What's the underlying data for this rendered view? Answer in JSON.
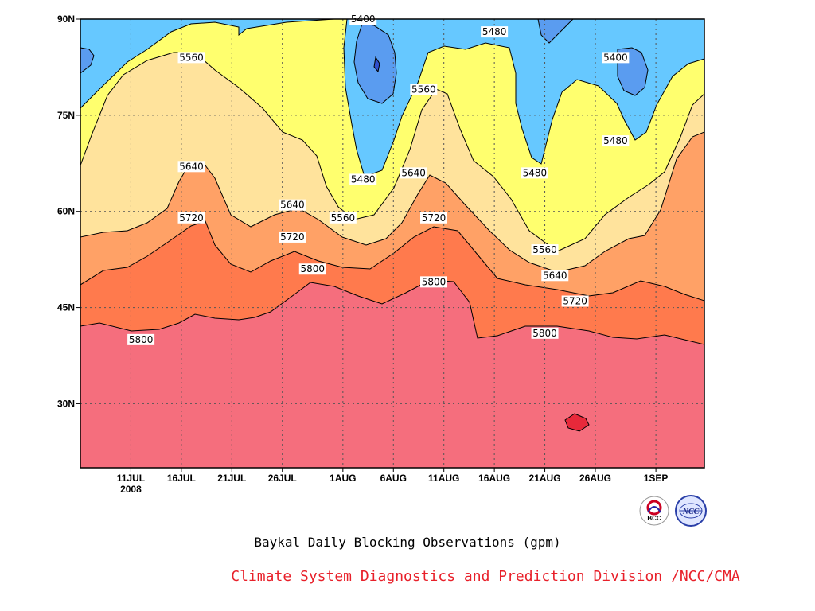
{
  "chart_data": {
    "type": "contour",
    "x": [
      "11JUL 2008",
      "16JUL",
      "21JUL",
      "26JUL",
      "1AUG",
      "6AUG",
      "11AUG",
      "16AUG",
      "21AUG",
      "26AUG",
      "1SEP"
    ],
    "x_ticks": [
      "11JUL",
      "16JUL",
      "21JUL",
      "26JUL",
      "1AUG",
      "6AUG",
      "11AUG",
      "16AUG",
      "21AUG",
      "26AUG",
      "1SEP"
    ],
    "x_year": "2008",
    "y_ticks": [
      "30N",
      "45N",
      "60N",
      "75N",
      "90N"
    ],
    "ylim_deg": [
      20,
      90
    ],
    "levels": [
      5400,
      5480,
      5560,
      5640,
      5720,
      5800
    ],
    "level_colors": {
      "lt5400": "#3d6fe0",
      "5400_5480": "#5a9cf0",
      "5480_5560": "#66c8ff",
      "5560_5640": "#ffff6e",
      "5640_5720": "#ffe39c",
      "5720_5800": "#ffa166",
      "5800_5880": "#ff7a4d",
      "gt5880": "#f56e7d",
      "hot_spot": "#e8293a",
      "deep_blue": "#3050d0"
    },
    "contour_labels": [
      {
        "text": "5400",
        "date": "3AUG",
        "lat": 90
      },
      {
        "text": "5480",
        "date": "16AUG",
        "lat": 88
      },
      {
        "text": "5400",
        "date": "28AUG",
        "lat": 84
      },
      {
        "text": "5560",
        "date": "17JUL",
        "lat": 84
      },
      {
        "text": "5560",
        "date": "9AUG",
        "lat": 79
      },
      {
        "text": "5480",
        "date": "28AUG",
        "lat": 71
      },
      {
        "text": "5480",
        "date": "3AUG",
        "lat": 65
      },
      {
        "text": "5480",
        "date": "20AUG",
        "lat": 66
      },
      {
        "text": "5640",
        "date": "17JUL",
        "lat": 67
      },
      {
        "text": "5640",
        "date": "8AUG",
        "lat": 66
      },
      {
        "text": "5640",
        "date": "27JUL",
        "lat": 61
      },
      {
        "text": "5720",
        "date": "17JUL",
        "lat": 59
      },
      {
        "text": "5560",
        "date": "1AUG",
        "lat": 59
      },
      {
        "text": "5720",
        "date": "10AUG",
        "lat": 59
      },
      {
        "text": "5720",
        "date": "27JUL",
        "lat": 56
      },
      {
        "text": "5560",
        "date": "21AUG",
        "lat": 54
      },
      {
        "text": "5800",
        "date": "29JUL",
        "lat": 51
      },
      {
        "text": "5640",
        "date": "22AUG",
        "lat": 50
      },
      {
        "text": "5800",
        "date": "10AUG",
        "lat": 49
      },
      {
        "text": "5720",
        "date": "24AUG",
        "lat": 46
      },
      {
        "text": "5800",
        "date": "21AUG",
        "lat": 41
      },
      {
        "text": "5800",
        "date": "12JUL",
        "lat": 40
      }
    ],
    "title": "Baykal Daily Blocking Observations (gpm)",
    "grid": true
  },
  "footer": {
    "title": "Baykal Daily Blocking Observations (gpm)",
    "credit": "Climate System Diagnostics and Prediction Division /NCC/CMA",
    "credit_color": "#e8202a"
  },
  "logos": {
    "left": {
      "icon": "bcc-logo",
      "text": "BCC"
    },
    "right": {
      "icon": "ncc-logo",
      "text": "NCC"
    }
  }
}
